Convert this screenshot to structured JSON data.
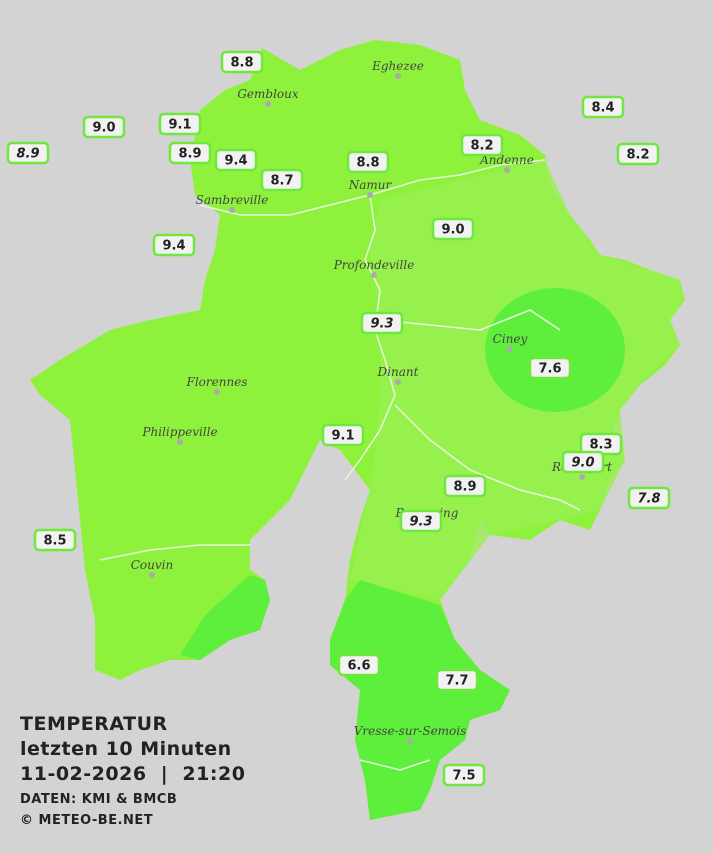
{
  "title": {
    "lines": [
      "TEMPERATUR",
      "letzten 10 Minuten",
      "11-02-2026  |  21:20"
    ],
    "source": "DATEN: KMI & BMCB",
    "copyright": "© METEO-BE.NET"
  },
  "cities": [
    "Eghezee",
    "Gembloux",
    "Andenne",
    "Namur",
    "Sambreville",
    "Profondeville",
    "Ciney",
    "Dinant",
    "Florennes",
    "Philippeville",
    "Rochefort",
    "Beauraing",
    "Couvin",
    "Vresse-sur-Semois"
  ],
  "stations": [
    {
      "value": "8.8"
    },
    {
      "value": "9.0"
    },
    {
      "value": "8.9",
      "style": "italic"
    },
    {
      "value": "9.1"
    },
    {
      "value": "8.9"
    },
    {
      "value": "9.4"
    },
    {
      "value": "8.7"
    },
    {
      "value": "8.8"
    },
    {
      "value": "8.2"
    },
    {
      "value": "8.4"
    },
    {
      "value": "8.2"
    },
    {
      "value": "9.0"
    },
    {
      "value": "9.4"
    },
    {
      "value": "9.3",
      "style": "italic"
    },
    {
      "value": "7.6"
    },
    {
      "value": "9.1"
    },
    {
      "value": "8.3"
    },
    {
      "value": "9.0",
      "style": "italic"
    },
    {
      "value": "7.8",
      "style": "italic"
    },
    {
      "value": "8.9"
    },
    {
      "value": "9.3",
      "style": "italic"
    },
    {
      "value": "8.5"
    },
    {
      "value": "6.6"
    },
    {
      "value": "7.7"
    },
    {
      "value": "7.5"
    }
  ]
}
